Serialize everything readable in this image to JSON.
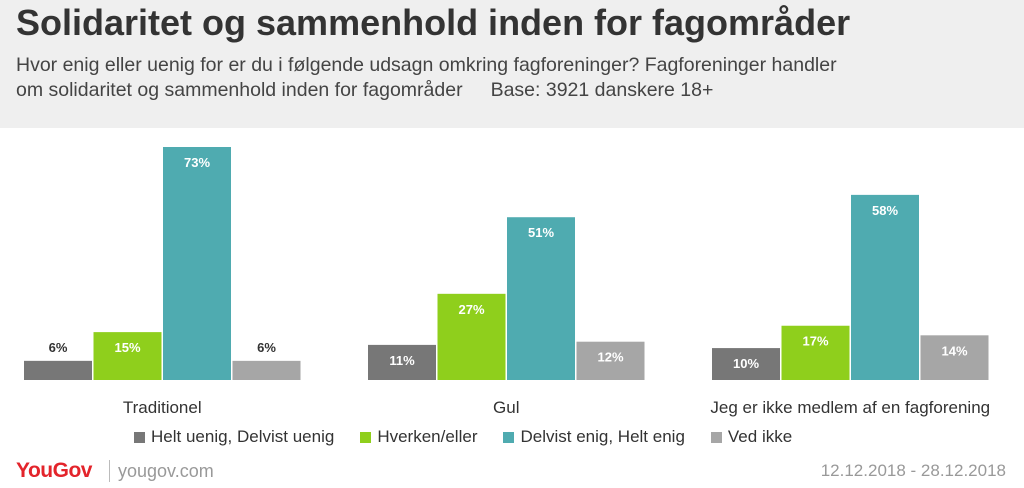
{
  "header": {
    "title": "Solidaritet og sammenhold inden for fagområder",
    "subtitle_line1": "Hvor enig eller uenig for er du i følgende udsagn omkring fagforeninger?  Fagforeninger handler",
    "subtitle_line2": "om solidaritet og sammenhold inden for fagområder",
    "base": "Base: 3921 danskere 18+"
  },
  "footer": {
    "logo": "YouGov",
    "url": "yougov.com",
    "date_range": "12.12.2018 - 28.12.2018"
  },
  "chart_data": {
    "type": "bar",
    "categories": [
      "Traditionel",
      "Gul",
      "Jeg er ikke medlem af en fagforening"
    ],
    "series": [
      {
        "name": "Helt uenig, Delvist uenig",
        "color": "#777777",
        "values": [
          6,
          11,
          10
        ]
      },
      {
        "name": "Hverken/eller",
        "color": "#8fcf1c",
        "values": [
          15,
          27,
          17
        ]
      },
      {
        "name": "Delvist enig, Helt enig",
        "color": "#4fabb0",
        "values": [
          73,
          51,
          58
        ]
      },
      {
        "name": "Ved ikke",
        "color": "#a6a6a6",
        "values": [
          6,
          12,
          14
        ]
      }
    ],
    "value_suffix": "%",
    "ylim": [
      0,
      73
    ],
    "legend_position": "bottom",
    "grid": false
  }
}
